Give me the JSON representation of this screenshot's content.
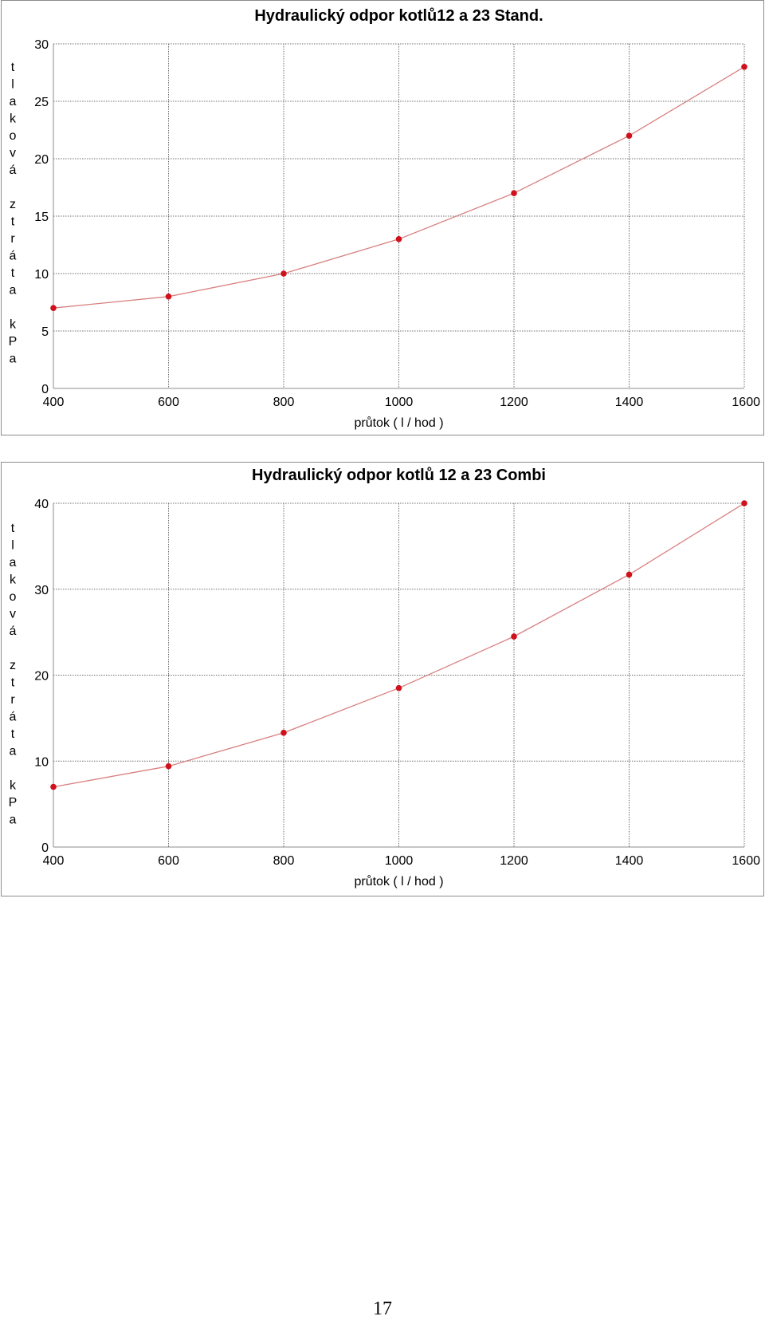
{
  "page": {
    "number": "17"
  },
  "chart_data": [
    {
      "type": "line",
      "title": "Hydraulický odpor kotlů12 a 23 Stand.",
      "xlabel": "průtok ( l / hod )",
      "ylabel": "tlaková ztráta kPa",
      "x": [
        400,
        600,
        800,
        1000,
        1200,
        1400,
        1600
      ],
      "series": [
        {
          "values": [
            7,
            8,
            10,
            13,
            17,
            22,
            28
          ]
        }
      ],
      "xlim": [
        400,
        1600
      ],
      "ylim": [
        0,
        30
      ],
      "xticks": [
        400,
        600,
        800,
        1000,
        1200,
        1400,
        1600
      ],
      "yticks": [
        0,
        5,
        10,
        15,
        20,
        25,
        30
      ],
      "grid": true,
      "colors": {
        "line": "#d98080",
        "marker": "#d0101b",
        "grid": "#6e6e6e",
        "axis": "#8c8c8c"
      }
    },
    {
      "type": "line",
      "title": "Hydraulický odpor kotlů 12 a 23 Combi",
      "xlabel": "průtok ( l / hod )",
      "ylabel": "tlaková ztráta kPa",
      "x": [
        400,
        600,
        800,
        1000,
        1200,
        1400,
        1600
      ],
      "series": [
        {
          "values": [
            7,
            9.4,
            13.3,
            18.5,
            24.5,
            31.7,
            40
          ]
        }
      ],
      "xlim": [
        400,
        1600
      ],
      "ylim": [
        0,
        40
      ],
      "xticks": [
        400,
        600,
        800,
        1000,
        1200,
        1400,
        1600
      ],
      "yticks": [
        0,
        10,
        20,
        30,
        40
      ],
      "grid": true,
      "colors": {
        "line": "#d98080",
        "marker": "#d0101b",
        "grid": "#6e6e6e",
        "axis": "#8c8c8c"
      }
    }
  ]
}
